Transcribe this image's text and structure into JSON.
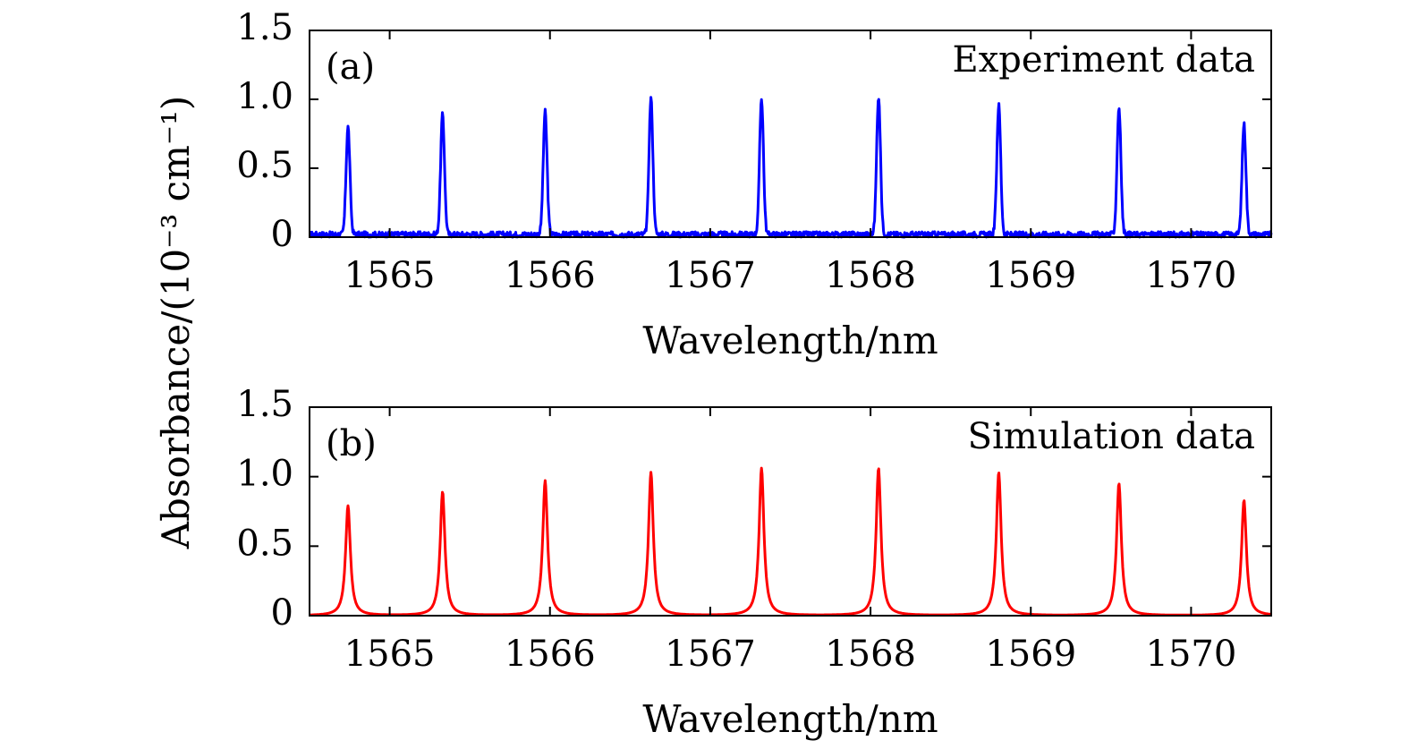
{
  "figure": {
    "ylabel": "Absorbance/(10⁻³ cm⁻¹)"
  },
  "chart_data": [
    {
      "type": "line",
      "panel_tag": "(a)",
      "series_name": "Experiment data",
      "series_color": "#0000ff",
      "xlabel": "Wavelength/nm",
      "xlim": [
        1564.5,
        1570.5
      ],
      "ylim": [
        0,
        1.5
      ],
      "x_ticks": [
        1565,
        1566,
        1567,
        1568,
        1569,
        1570
      ],
      "x_tick_labels": [
        "1565",
        "1566",
        "1567",
        "1568",
        "1569",
        "1570"
      ],
      "y_ticks": [
        0,
        0.5,
        1.0,
        1.5
      ],
      "y_tick_labels": [
        "0",
        "0.5",
        "1.0",
        "1.5"
      ],
      "baseline": 0.02,
      "noise": 0.02,
      "peak_width": 0.012,
      "peak_shape": "gaussian",
      "peaks": [
        {
          "x": 1564.74,
          "y": 0.8
        },
        {
          "x": 1565.33,
          "y": 0.89
        },
        {
          "x": 1565.97,
          "y": 0.91
        },
        {
          "x": 1566.63,
          "y": 1.01
        },
        {
          "x": 1567.32,
          "y": 1.01
        },
        {
          "x": 1568.05,
          "y": 1.02
        },
        {
          "x": 1568.8,
          "y": 0.96
        },
        {
          "x": 1569.55,
          "y": 0.94
        },
        {
          "x": 1570.33,
          "y": 0.82
        }
      ]
    },
    {
      "type": "line",
      "panel_tag": "(b)",
      "series_name": "Simulation data",
      "series_color": "#ff0000",
      "xlabel": "Wavelength/nm",
      "xlim": [
        1564.5,
        1570.5
      ],
      "ylim": [
        0,
        1.5
      ],
      "x_ticks": [
        1565,
        1566,
        1567,
        1568,
        1569,
        1570
      ],
      "x_tick_labels": [
        "1565",
        "1566",
        "1567",
        "1568",
        "1569",
        "1570"
      ],
      "y_ticks": [
        0,
        0.5,
        1.0,
        1.5
      ],
      "y_tick_labels": [
        "0",
        "0.5",
        "1.0",
        "1.5"
      ],
      "baseline": 0.0,
      "noise": 0.0,
      "peak_width": 0.018,
      "peak_shape": "lorentzian",
      "peaks": [
        {
          "x": 1564.74,
          "y": 0.79
        },
        {
          "x": 1565.33,
          "y": 0.89
        },
        {
          "x": 1565.97,
          "y": 0.97
        },
        {
          "x": 1566.63,
          "y": 1.03
        },
        {
          "x": 1567.32,
          "y": 1.06
        },
        {
          "x": 1568.05,
          "y": 1.06
        },
        {
          "x": 1568.8,
          "y": 1.03
        },
        {
          "x": 1569.55,
          "y": 0.95
        },
        {
          "x": 1570.33,
          "y": 0.83
        }
      ]
    }
  ]
}
